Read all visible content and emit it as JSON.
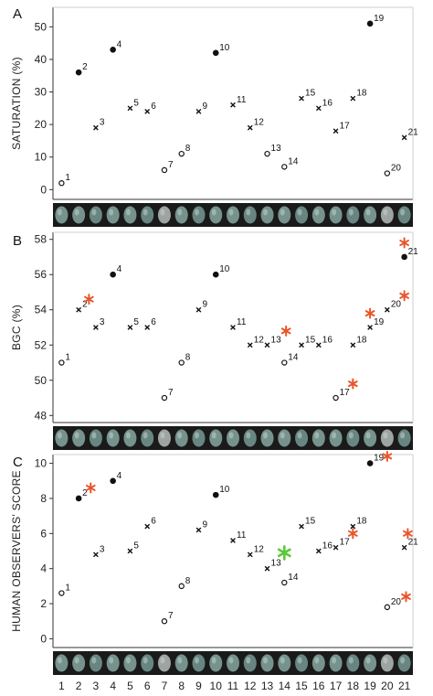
{
  "figure": {
    "x_tick_labels": [
      "1",
      "2",
      "3",
      "4",
      "5",
      "6",
      "7",
      "8",
      "9",
      "10",
      "11",
      "12",
      "13",
      "14",
      "15",
      "16",
      "17",
      "18",
      "19",
      "20",
      "21"
    ],
    "colors": {
      "marker": "#111111",
      "red_star": "#e8552b",
      "green_star": "#5ac83a",
      "egg_strip": "#1a1a1a"
    },
    "icons": {
      "filled": "filled-circle-marker",
      "cross": "cross-marker",
      "open": "open-circle-marker",
      "star": "asterisk-star-marker",
      "egg": "egg-thumbnail"
    }
  },
  "chart_data": [
    {
      "type": "scatter",
      "panel_label": "A",
      "ylabel": "SATURATION (%)",
      "ylim": [
        -3,
        56
      ],
      "yticks": [
        0,
        10,
        20,
        30,
        40,
        50
      ],
      "xlim": [
        0.5,
        21.5
      ],
      "grid": false,
      "points": [
        {
          "x": 1,
          "y": 2,
          "label": "1",
          "marker": "open"
        },
        {
          "x": 2,
          "y": 36,
          "label": "2",
          "marker": "filled"
        },
        {
          "x": 3,
          "y": 19,
          "label": "3",
          "marker": "cross"
        },
        {
          "x": 4,
          "y": 43,
          "label": "4",
          "marker": "filled"
        },
        {
          "x": 5,
          "y": 25,
          "label": "5",
          "marker": "cross"
        },
        {
          "x": 6,
          "y": 24,
          "label": "6",
          "marker": "cross"
        },
        {
          "x": 7,
          "y": 6,
          "label": "7",
          "marker": "open"
        },
        {
          "x": 8,
          "y": 11,
          "label": "8",
          "marker": "open"
        },
        {
          "x": 9,
          "y": 24,
          "label": "9",
          "marker": "cross"
        },
        {
          "x": 10,
          "y": 42,
          "label": "10",
          "marker": "filled"
        },
        {
          "x": 11,
          "y": 26,
          "label": "11",
          "marker": "cross"
        },
        {
          "x": 12,
          "y": 19,
          "label": "12",
          "marker": "cross"
        },
        {
          "x": 13,
          "y": 11,
          "label": "13",
          "marker": "open"
        },
        {
          "x": 14,
          "y": 7,
          "label": "14",
          "marker": "open"
        },
        {
          "x": 15,
          "y": 28,
          "label": "15",
          "marker": "cross"
        },
        {
          "x": 16,
          "y": 25,
          "label": "16",
          "marker": "cross"
        },
        {
          "x": 17,
          "y": 18,
          "label": "17",
          "marker": "cross"
        },
        {
          "x": 18,
          "y": 28,
          "label": "18",
          "marker": "cross"
        },
        {
          "x": 19,
          "y": 51,
          "label": "19",
          "marker": "filled"
        },
        {
          "x": 20,
          "y": 5,
          "label": "20",
          "marker": "open"
        },
        {
          "x": 21,
          "y": 16,
          "label": "21",
          "marker": "cross"
        }
      ],
      "stars": []
    },
    {
      "type": "scatter",
      "panel_label": "B",
      "ylabel": "BGC (%)",
      "ylim": [
        47.6,
        58.4
      ],
      "yticks": [
        48,
        50,
        52,
        54,
        56,
        58
      ],
      "xlim": [
        0.5,
        21.5
      ],
      "grid": false,
      "points": [
        {
          "x": 1,
          "y": 51,
          "label": "1",
          "marker": "open"
        },
        {
          "x": 2,
          "y": 54,
          "label": "2",
          "marker": "cross"
        },
        {
          "x": 3,
          "y": 53,
          "label": "3",
          "marker": "cross"
        },
        {
          "x": 4,
          "y": 56,
          "label": "4",
          "marker": "filled"
        },
        {
          "x": 5,
          "y": 53,
          "label": "5",
          "marker": "cross"
        },
        {
          "x": 6,
          "y": 53,
          "label": "6",
          "marker": "cross"
        },
        {
          "x": 7,
          "y": 49,
          "label": "7",
          "marker": "open"
        },
        {
          "x": 8,
          "y": 51,
          "label": "8",
          "marker": "open"
        },
        {
          "x": 9,
          "y": 54,
          "label": "9",
          "marker": "cross"
        },
        {
          "x": 10,
          "y": 56,
          "label": "10",
          "marker": "filled"
        },
        {
          "x": 11,
          "y": 53,
          "label": "11",
          "marker": "cross"
        },
        {
          "x": 12,
          "y": 52,
          "label": "12",
          "marker": "cross"
        },
        {
          "x": 13,
          "y": 52,
          "label": "13",
          "marker": "cross"
        },
        {
          "x": 14,
          "y": 51,
          "label": "14",
          "marker": "open"
        },
        {
          "x": 15,
          "y": 52,
          "label": "15",
          "marker": "cross"
        },
        {
          "x": 16,
          "y": 52,
          "label": "16",
          "marker": "cross"
        },
        {
          "x": 17,
          "y": 49,
          "label": "17",
          "marker": "open"
        },
        {
          "x": 18,
          "y": 52,
          "label": "18",
          "marker": "cross"
        },
        {
          "x": 19,
          "y": 53,
          "label": "19",
          "marker": "cross"
        },
        {
          "x": 20,
          "y": 54,
          "label": "20",
          "marker": "cross"
        },
        {
          "x": 21,
          "y": 57,
          "label": "21",
          "marker": "filled"
        }
      ],
      "stars": [
        {
          "x": 2.6,
          "y": 54.6,
          "color": "red"
        },
        {
          "x": 14.1,
          "y": 52.8,
          "color": "red"
        },
        {
          "x": 18.0,
          "y": 49.8,
          "color": "red"
        },
        {
          "x": 19.0,
          "y": 53.8,
          "color": "red"
        },
        {
          "x": 21.0,
          "y": 54.8,
          "color": "red"
        },
        {
          "x": 21.0,
          "y": 57.8,
          "color": "red"
        }
      ]
    },
    {
      "type": "scatter",
      "panel_label": "C",
      "ylabel": "HUMAN OBSERVERS' SCORE",
      "ylim": [
        -0.5,
        10.5
      ],
      "yticks": [
        0,
        2,
        4,
        6,
        8,
        10
      ],
      "xlim": [
        0.5,
        21.5
      ],
      "grid": false,
      "points": [
        {
          "x": 1,
          "y": 2.6,
          "label": "1",
          "marker": "open"
        },
        {
          "x": 2,
          "y": 8,
          "label": "2",
          "marker": "filled"
        },
        {
          "x": 3,
          "y": 4.8,
          "label": "3",
          "marker": "cross"
        },
        {
          "x": 4,
          "y": 9,
          "label": "4",
          "marker": "filled"
        },
        {
          "x": 5,
          "y": 5,
          "label": "5",
          "marker": "cross"
        },
        {
          "x": 6,
          "y": 6.4,
          "label": "6",
          "marker": "cross"
        },
        {
          "x": 7,
          "y": 1,
          "label": "7",
          "marker": "open"
        },
        {
          "x": 8,
          "y": 3,
          "label": "8",
          "marker": "open"
        },
        {
          "x": 9,
          "y": 6.2,
          "label": "9",
          "marker": "cross"
        },
        {
          "x": 10,
          "y": 8.2,
          "label": "10",
          "marker": "filled"
        },
        {
          "x": 11,
          "y": 5.6,
          "label": "11",
          "marker": "cross"
        },
        {
          "x": 12,
          "y": 4.8,
          "label": "12",
          "marker": "cross"
        },
        {
          "x": 13,
          "y": 4,
          "label": "13",
          "marker": "cross"
        },
        {
          "x": 14,
          "y": 3.2,
          "label": "14",
          "marker": "open"
        },
        {
          "x": 15,
          "y": 6.4,
          "label": "15",
          "marker": "cross"
        },
        {
          "x": 16,
          "y": 5,
          "label": "16",
          "marker": "cross"
        },
        {
          "x": 17,
          "y": 5.2,
          "label": "17",
          "marker": "cross"
        },
        {
          "x": 18,
          "y": 6.4,
          "label": "18",
          "marker": "cross"
        },
        {
          "x": 19,
          "y": 10,
          "label": "19",
          "marker": "filled"
        },
        {
          "x": 20,
          "y": 1.8,
          "label": "20",
          "marker": "open"
        },
        {
          "x": 21,
          "y": 5.2,
          "label": "21",
          "marker": "cross"
        }
      ],
      "stars": [
        {
          "x": 2.7,
          "y": 8.6,
          "color": "red"
        },
        {
          "x": 14.0,
          "y": 4.9,
          "color": "green"
        },
        {
          "x": 18.0,
          "y": 6.0,
          "color": "red"
        },
        {
          "x": 20.0,
          "y": 10.4,
          "color": "red"
        },
        {
          "x": 21.1,
          "y": 2.4,
          "color": "red"
        },
        {
          "x": 21.2,
          "y": 6.0,
          "color": "red"
        }
      ]
    }
  ]
}
